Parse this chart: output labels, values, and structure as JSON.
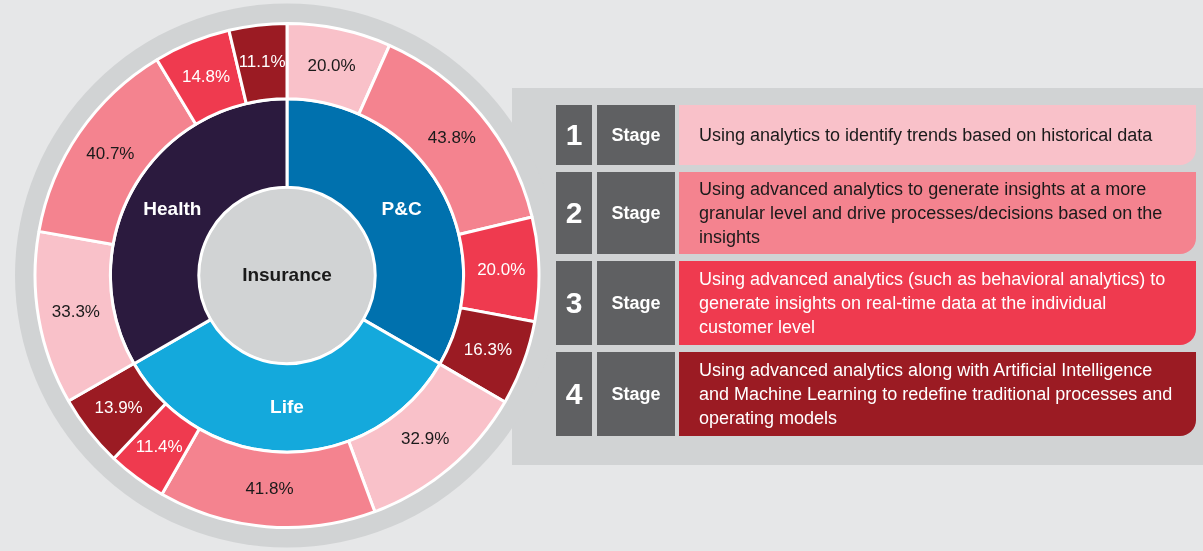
{
  "chart_data": {
    "type": "donut",
    "legend_title": "Stage",
    "annotations": [
      "Insurance",
      "P&C",
      "Life",
      "Health",
      "1",
      "2",
      "3",
      "4",
      "Using analytics to identify trends based on historical data",
      "Using advanced analytics to generate insights at a more granular level and drive processes/decisions based on the insights",
      "Using advanced analytics (such as behavioral analytics) to generate insights on real-time data at the individual customer level",
      "Using advanced analytics along with Artificial Intelligence and Machine Learning to redefine traditional processes and operating models"
    ],
    "series": [
      {
        "values": [
          20.0,
          43.8,
          20.0,
          16.3,
          32.9,
          41.8,
          11.4,
          13.9,
          33.3,
          40.7,
          14.8,
          11.1
        ],
        "colors": [
          "#f9c1c9",
          "#f4838f",
          "#ef3a4f",
          "#9b1b23",
          "#f9c1c9",
          "#f4838f",
          "#ef3a4f",
          "#9b1b23",
          "#f9c1c9",
          "#f4838f",
          "#ef3a4f",
          "#9b1b23"
        ],
        "value_labels": [
          "20.0%",
          "43.8%",
          "20.0%",
          "16.3%",
          "32.9%",
          "41.8%",
          "11.4%",
          "13.9%",
          "33.3%",
          "40.7%",
          "14.8%",
          "11.1%"
        ]
      },
      {
        "values": [
          33.3,
          33.3,
          33.3
        ],
        "colors": [
          "#0071ae",
          "#14a9dc",
          "#2b1a3e"
        ]
      }
    ]
  }
}
